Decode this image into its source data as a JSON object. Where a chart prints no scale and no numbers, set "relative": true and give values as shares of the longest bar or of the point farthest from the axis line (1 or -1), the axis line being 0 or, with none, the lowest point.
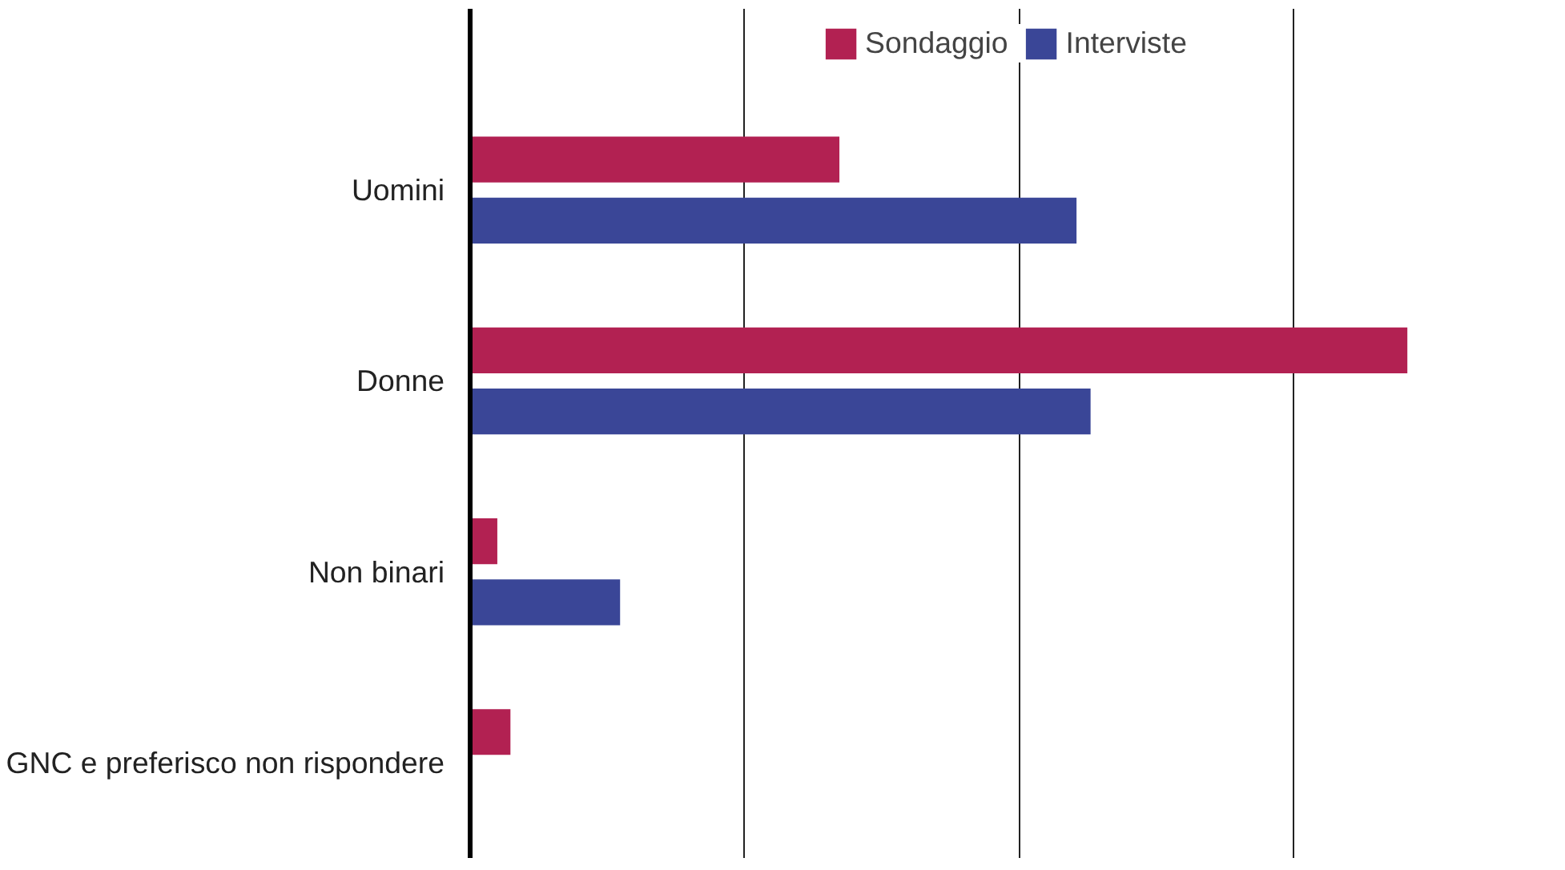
{
  "chart_data": {
    "type": "bar",
    "orientation": "horizontal",
    "relative": true,
    "categories": [
      "Uomini",
      "Donne",
      "Non binari",
      "GNC e preferisco non rispondere"
    ],
    "series": [
      {
        "name": "Sondaggio",
        "color": "#b22152",
        "values": [
          0.394,
          1,
          0.029,
          0.043
        ]
      },
      {
        "name": "Interviste",
        "color": "#3a4697",
        "values": [
          0.647,
          0.662,
          0.16,
          null
        ]
      }
    ],
    "grid": "x",
    "legend": "top"
  }
}
